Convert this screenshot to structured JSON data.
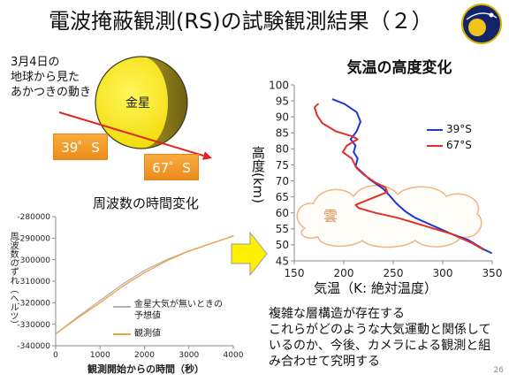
{
  "slide": {
    "title": "電波掩蔽観測(RS)の試験観測結果（２）",
    "logo_icon": "mission-logo-icon",
    "page_number": "26",
    "colors": {
      "trajectory": "#e0261e",
      "track_box": "#f0962a",
      "venus_day": "#f7ea00",
      "venus_night": "#857417",
      "highlight_arrow": "#fff000",
      "cloud": "#f4b183"
    }
  },
  "motion_diagram": {
    "caption_lines": [
      "3月4日の",
      "地球から見た",
      "あかつきの動き"
    ],
    "planet_label": "金星",
    "track_labels": [
      "39゜S",
      "67゜S"
    ]
  },
  "conclusion": {
    "lines": [
      "複雑な層構造が存在する",
      "これらがどのような大気運動と関係して",
      "いるのか、今後、カメラによる観測と組",
      "み合わせて究明する"
    ]
  },
  "chart_data": [
    {
      "type": "line",
      "title": "周波数の時間変化",
      "xlabel": "観測開始からの時間（秒）",
      "ylabel": "周波数のずれ（ヘルツ）",
      "xlim": [
        0,
        4000
      ],
      "ylim": [
        -340000,
        -280000
      ],
      "xticks": [
        "0",
        "1000",
        "2000",
        "3000",
        "4000"
      ],
      "yticks": [
        "-280000",
        "-290000",
        "-300000",
        "-310000",
        "-320000",
        "-330000",
        "-340000"
      ],
      "grid": false,
      "legend": "bottom-right",
      "series": [
        {
          "name": "金星大気が無いときの予想値",
          "color": "#b3b3b3",
          "x": [
            0,
            500,
            1000,
            1500,
            2000,
            2500,
            3000,
            3500,
            4000
          ],
          "y": [
            -334500,
            -326500,
            -319000,
            -311500,
            -305000,
            -300000,
            -296000,
            -292500,
            -289000
          ]
        },
        {
          "name": "観測値",
          "color": "#f0a040",
          "x": [
            0,
            500,
            1000,
            1500,
            2000,
            2500,
            3000,
            3500,
            4000
          ],
          "y": [
            -334500,
            -327000,
            -320000,
            -312500,
            -306000,
            -300500,
            -296000,
            -292500,
            -289000
          ]
        }
      ]
    },
    {
      "type": "line",
      "title": "気温の高度変化",
      "xlabel": "気温（K: 絶対温度）",
      "ylabel": "高度(km)",
      "xlim": [
        150,
        350
      ],
      "ylim": [
        45,
        100
      ],
      "xticks": [
        "150",
        "200",
        "250",
        "300",
        "350"
      ],
      "yticks": [
        "100",
        "95",
        "90",
        "85",
        "80",
        "75",
        "70",
        "65",
        "60",
        "55",
        "50",
        "45"
      ],
      "grid": false,
      "legend": "top-right",
      "annotation": "雲",
      "series": [
        {
          "name": "39°S",
          "color": "#1f35d6",
          "x": [
            189,
            201,
            213,
            217,
            213,
            207,
            212,
            210,
            214,
            212,
            219,
            226,
            233,
            240,
            246,
            253,
            262,
            272,
            290,
            308,
            326,
            342,
            349
          ],
          "y": [
            95.5,
            94,
            91.5,
            88.5,
            85.5,
            83,
            81,
            79,
            77,
            74.5,
            72.5,
            70.5,
            69,
            67.5,
            65.5,
            63,
            60.5,
            58.5,
            56,
            53.5,
            51.5,
            48.5,
            47.5
          ]
        },
        {
          "name": "67°S",
          "color": "#e0302a",
          "x": [
            174,
            170.5,
            173,
            178.5,
            192,
            208,
            214,
            203,
            199,
            208,
            213,
            220,
            232,
            242,
            244,
            228,
            212,
            215,
            232,
            254,
            281,
            308,
            330,
            341
          ],
          "y": [
            94,
            93,
            90.5,
            88,
            85.5,
            84,
            83,
            81,
            79,
            77,
            74,
            72,
            69.5,
            68,
            66.5,
            64.5,
            62.5,
            61.5,
            60,
            58.5,
            56,
            53.5,
            50.5,
            48.5
          ]
        }
      ]
    }
  ]
}
